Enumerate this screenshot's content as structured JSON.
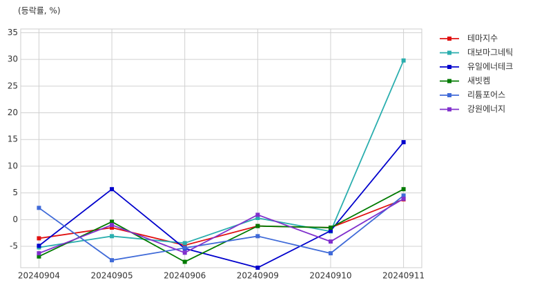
{
  "chart_data": {
    "type": "line",
    "y_label": "(등락률, %)",
    "categories": [
      "20240904",
      "20240905",
      "20240906",
      "20240909",
      "20240910",
      "20240911"
    ],
    "series": [
      {
        "name": "테마지수",
        "color": "#e01010",
        "values": [
          -3.5,
          -1.5,
          -4.8,
          -1.2,
          -1.5,
          3.8
        ]
      },
      {
        "name": "대보마그네틱",
        "color": "#2aaeae",
        "values": [
          -5.2,
          -3.1,
          -4.4,
          0.3,
          -2.2,
          29.8
        ]
      },
      {
        "name": "유일에너테크",
        "color": "#0000cc",
        "values": [
          -4.9,
          5.7,
          -5.4,
          -9.0,
          -2.1,
          14.5
        ]
      },
      {
        "name": "새빗켐",
        "color": "#007a00",
        "values": [
          -6.9,
          -0.4,
          -7.9,
          -1.2,
          -1.5,
          5.7
        ]
      },
      {
        "name": "리튬포어스",
        "color": "#3f6ad8",
        "values": [
          2.2,
          -7.6,
          -5.3,
          -3.1,
          -6.3,
          4.5
        ]
      },
      {
        "name": "강원에너지",
        "color": "#8030cc",
        "values": [
          -6.3,
          -1.0,
          -6.2,
          0.9,
          -4.1,
          3.9
        ]
      }
    ],
    "ylim": [
      -9,
      35.7
    ],
    "yticks": [
      -5,
      0,
      5,
      10,
      15,
      20,
      25,
      30,
      35
    ],
    "grid": true
  }
}
